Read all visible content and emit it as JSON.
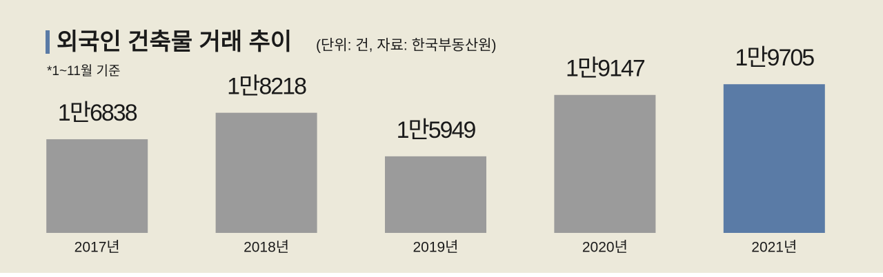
{
  "chart_data": {
    "type": "bar",
    "title": "외국인 건축물 거래 추이",
    "subtitle": "(단위: 건, 자료: 한국부동산원)",
    "note": "*1~11월 기준",
    "categories": [
      "2017년",
      "2018년",
      "2019년",
      "2020년",
      "2021년"
    ],
    "values": [
      16838,
      18218,
      15949,
      19147,
      19705
    ],
    "value_labels": [
      "1만6838",
      "1만8218",
      "1만5949",
      "1만9147",
      "1만9705"
    ],
    "colors": [
      "#9b9b9b",
      "#9b9b9b",
      "#9b9b9b",
      "#9b9b9b",
      "#5a7ba6"
    ],
    "ylim": [
      11960,
      20000
    ]
  }
}
